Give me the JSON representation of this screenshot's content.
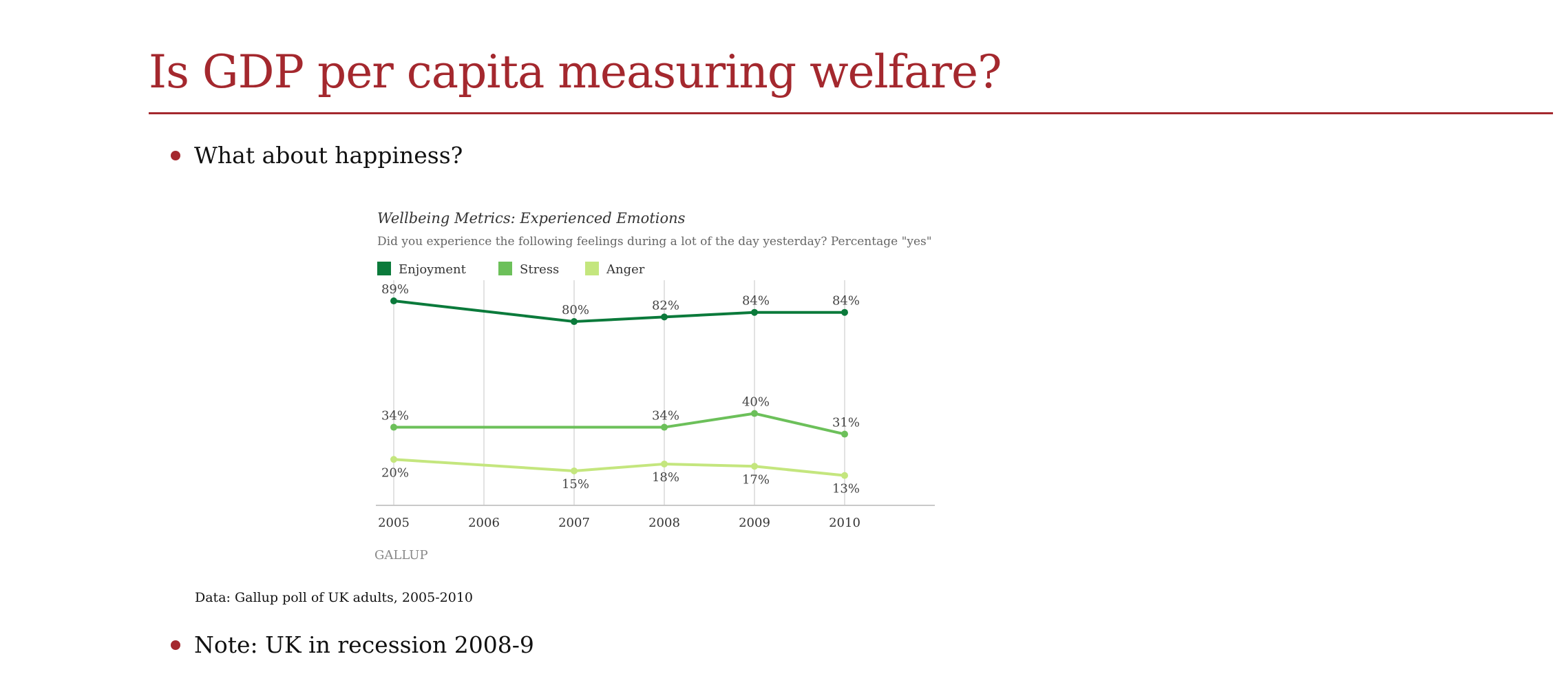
{
  "slide": {
    "title": "Is GDP per capita measuring welfare?",
    "bullets": [
      "What about happiness?",
      "Note: UK in recession 2008-9"
    ],
    "caption": "Data: Gallup poll of UK adults, 2005-2010"
  },
  "colors": {
    "accent": "#a4282e",
    "enjoyment": "#0b7a3b",
    "stress": "#6cc05a",
    "anger": "#c4e67e"
  },
  "chart_data": {
    "type": "line",
    "title": "Wellbeing Metrics: Experienced Emotions",
    "subtitle": "Did you experience the following feelings during a lot of the day yesterday? Percentage \"yes\"",
    "source": "GALLUP",
    "x": [
      "2005",
      "2006",
      "2007",
      "2008",
      "2009",
      "2010"
    ],
    "series": [
      {
        "name": "Enjoyment",
        "points": [
          [
            0,
            89
          ],
          [
            2,
            80
          ],
          [
            3,
            82
          ],
          [
            4,
            84
          ],
          [
            5,
            84
          ]
        ],
        "labels": [
          "89%",
          "80%",
          "82%",
          "84%",
          "84%"
        ],
        "label_position": "above"
      },
      {
        "name": "Stress",
        "points": [
          [
            0,
            34
          ],
          [
            3,
            34
          ],
          [
            4,
            40
          ],
          [
            5,
            31
          ]
        ],
        "labels": [
          "34%",
          "34%",
          "40%",
          "31%"
        ],
        "label_position": "above"
      },
      {
        "name": "Anger",
        "points": [
          [
            0,
            20
          ],
          [
            2,
            15
          ],
          [
            3,
            18
          ],
          [
            4,
            17
          ],
          [
            5,
            13
          ]
        ],
        "labels": [
          "20%",
          "15%",
          "18%",
          "17%",
          "13%"
        ],
        "label_position": "below"
      }
    ],
    "ylim": [
      0,
      98
    ],
    "grid": "vertical",
    "legend": "top-left"
  }
}
